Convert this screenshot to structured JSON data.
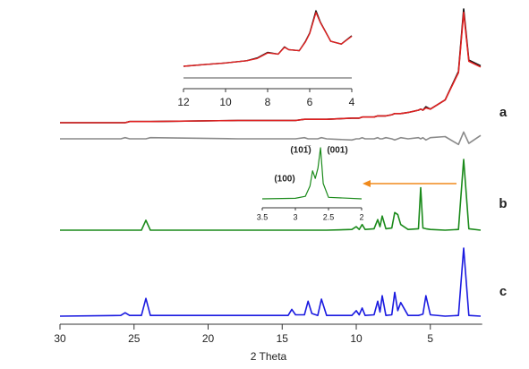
{
  "chart_data": [
    {
      "type": "line",
      "x_label": "2 Theta",
      "xlim": [
        30,
        1.5
      ],
      "xticks": [
        30,
        25,
        20,
        15,
        10,
        5
      ],
      "ylim": [
        0,
        100
      ],
      "x": [
        1.6,
        2.4,
        2.75,
        3.1,
        4.0,
        5.0,
        5.3,
        5.5,
        5.65,
        5.8,
        6.5,
        7.0,
        7.2,
        7.4,
        7.6,
        8.0,
        8.25,
        8.4,
        8.55,
        8.8,
        9.4,
        9.6,
        9.8,
        10.0,
        10.3,
        12.0,
        12.35,
        12.6,
        13.0,
        13.25,
        13.5,
        14.1,
        14.35,
        14.6,
        18,
        23.9,
        24.2,
        24.5,
        25.3,
        25.6,
        25.9,
        30
      ],
      "series": [
        {
          "name": "a",
          "color": "#111111",
          "values": [
            50,
            55,
            100,
            45,
            20,
            12,
            14,
            11,
            12,
            11,
            9,
            8,
            8,
            8,
            7,
            6,
            6,
            6,
            6,
            5,
            5,
            5,
            4,
            4,
            4,
            3,
            3,
            3,
            3,
            3,
            3,
            2,
            2,
            2,
            2,
            1,
            1,
            1,
            1,
            0,
            0,
            0
          ]
        },
        {
          "color": "#e02020",
          "values": [
            49,
            54,
            97,
            44,
            20,
            12,
            13,
            11,
            12,
            11,
            9,
            8,
            8,
            8,
            7,
            6,
            6,
            6,
            6,
            5,
            5,
            5,
            4,
            4,
            4,
            3,
            3,
            3,
            3,
            3,
            3,
            2,
            2,
            2,
            2,
            1,
            1,
            1,
            1,
            0,
            0,
            0
          ]
        },
        {
          "color": "#8a8a8a",
          "values": [
            3,
            -4,
            6,
            -5,
            2,
            1,
            -1,
            1,
            0,
            1,
            0,
            1,
            0,
            -1,
            0,
            1,
            0,
            0,
            1,
            0,
            0,
            1,
            0,
            0,
            -1,
            0,
            1,
            0,
            0,
            0,
            1,
            0,
            0,
            0,
            0,
            1,
            0,
            0,
            0,
            1,
            0,
            0
          ]
        },
        {
          "name": "b",
          "color": "#1a8a1a",
          "values": [
            0,
            2,
            100,
            1,
            0,
            1,
            2,
            3,
            60,
            2,
            1,
            8,
            22,
            25,
            3,
            2,
            20,
            5,
            15,
            2,
            1,
            8,
            1,
            5,
            1,
            0,
            0,
            0,
            0,
            0,
            0,
            0,
            0,
            0,
            0,
            0,
            14,
            0,
            0,
            0,
            0,
            0
          ]
        },
        {
          "name": "c",
          "color": "#1a1ae0",
          "values": [
            0,
            1,
            100,
            1,
            0,
            2,
            30,
            3,
            2,
            1,
            1,
            20,
            8,
            35,
            2,
            1,
            30,
            6,
            22,
            2,
            1,
            12,
            2,
            8,
            1,
            1,
            25,
            1,
            4,
            22,
            2,
            2,
            10,
            1,
            1,
            1,
            26,
            1,
            1,
            5,
            1,
            0
          ]
        }
      ]
    },
    {
      "type": "line",
      "xlim": [
        12,
        4
      ],
      "xticks": [
        12,
        10,
        8,
        6,
        4
      ],
      "ylim": [
        0,
        100
      ],
      "x": [
        12,
        11,
        10,
        9,
        8.5,
        8,
        7.5,
        7.2,
        7,
        6.5,
        6.2,
        6,
        5.7,
        5.5,
        5,
        4.5,
        4
      ],
      "series": [
        {
          "color": "#111111",
          "values": [
            0,
            3,
            6,
            10,
            15,
            25,
            22,
            35,
            30,
            28,
            45,
            60,
            100,
            80,
            45,
            40,
            55
          ]
        },
        {
          "color": "#e02020",
          "values": [
            0,
            3,
            6,
            10,
            14,
            24,
            22,
            34,
            30,
            28,
            44,
            59,
            97,
            79,
            45,
            40,
            54
          ]
        },
        {
          "color": "#8a8a8a",
          "values": [
            0,
            0,
            0,
            0,
            0,
            0,
            0,
            0,
            0,
            0,
            0,
            0,
            0,
            0,
            0,
            0,
            0
          ]
        }
      ]
    },
    {
      "type": "line",
      "xlim": [
        3.5,
        2.0
      ],
      "xticks": [
        3.5,
        3.0,
        2.5,
        2.0
      ],
      "ylim": [
        0,
        100
      ],
      "annotations": [
        "(100)",
        "(101̅)",
        "(001)"
      ],
      "x": [
        3.5,
        3.0,
        2.85,
        2.78,
        2.74,
        2.7,
        2.66,
        2.62,
        2.58,
        2.5,
        2.0
      ],
      "series": [
        {
          "color": "#1a8a1a",
          "values": [
            0,
            1,
            5,
            25,
            55,
            40,
            60,
            100,
            30,
            3,
            0
          ]
        }
      ]
    }
  ]
}
